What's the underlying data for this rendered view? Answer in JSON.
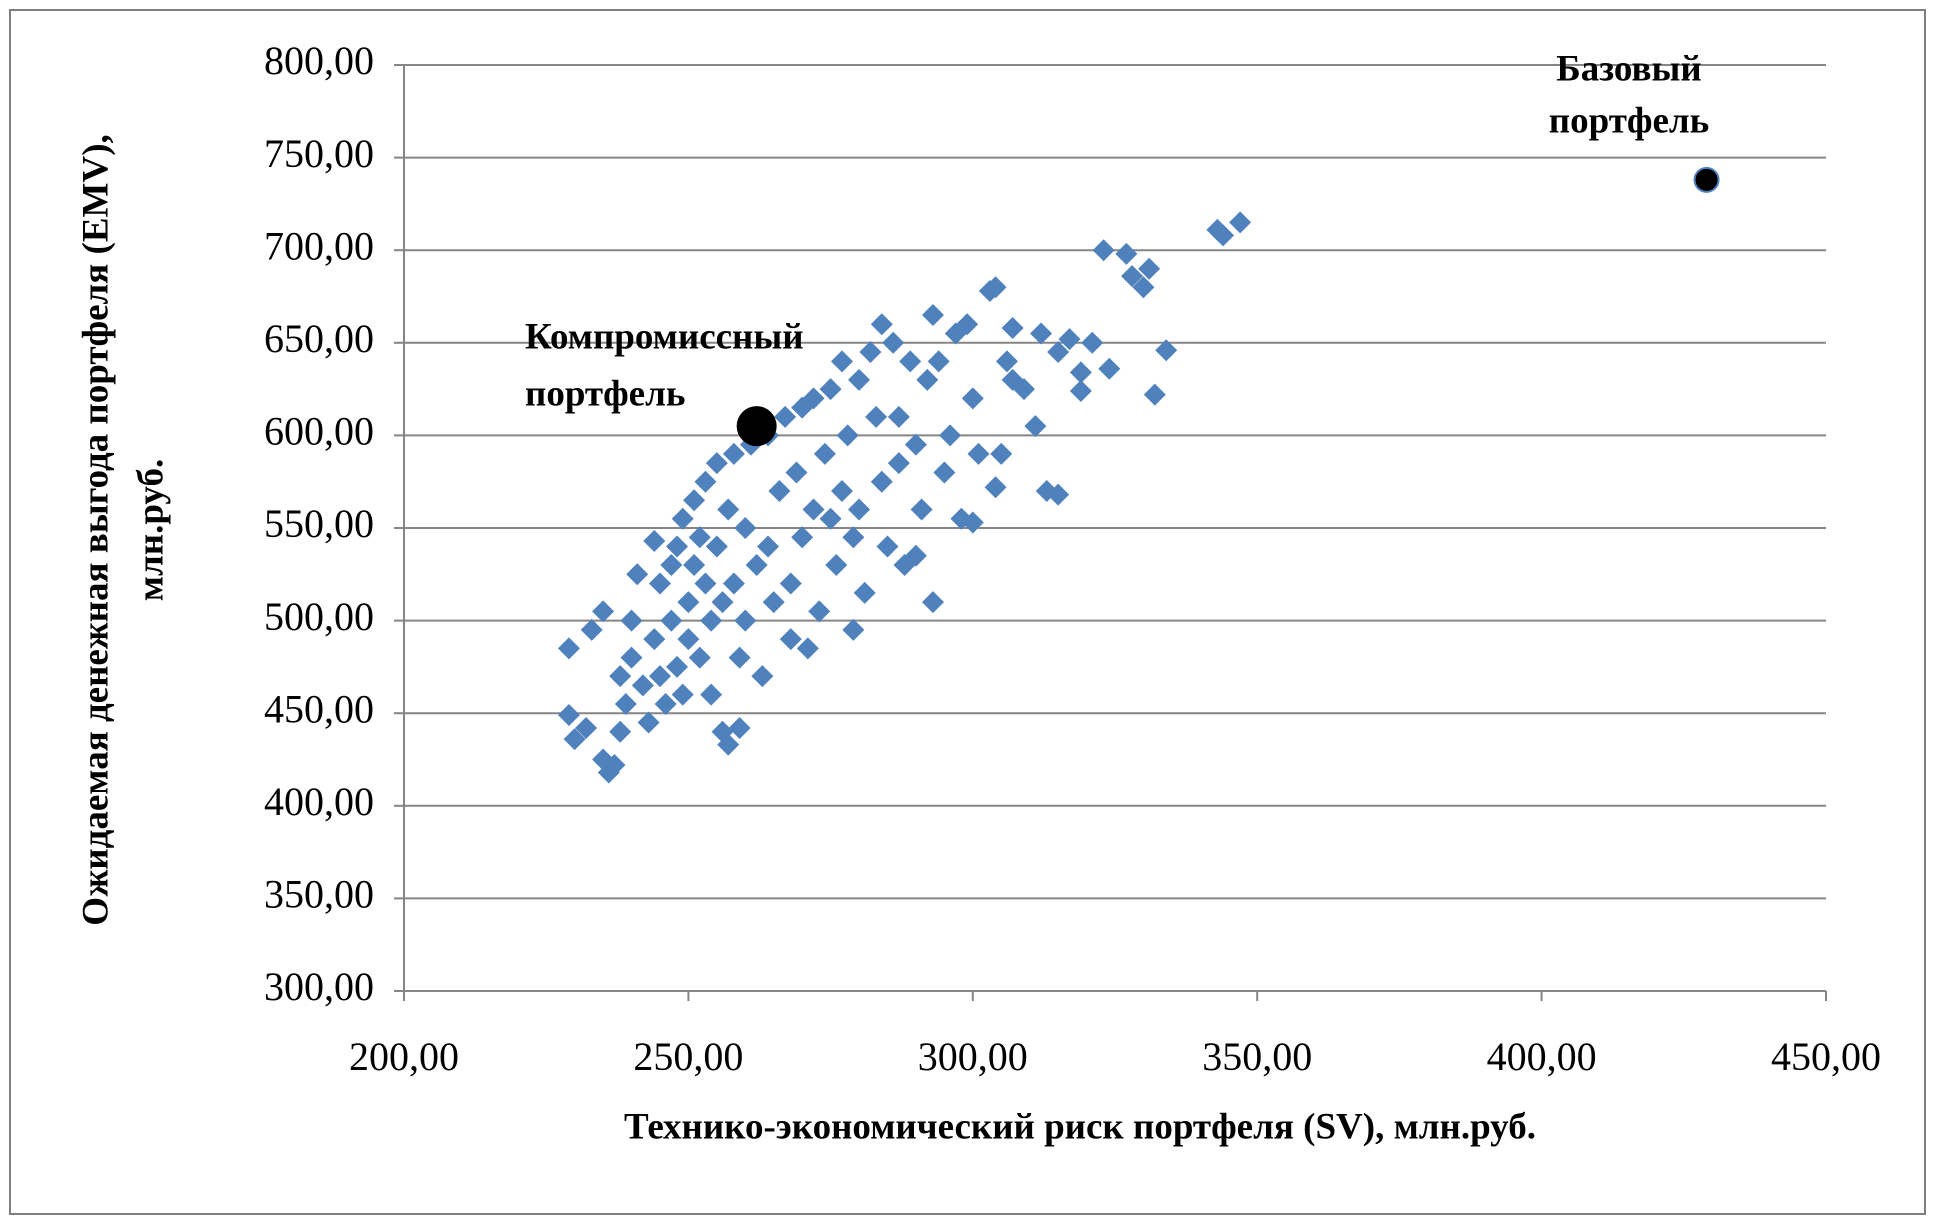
{
  "chart_data": {
    "type": "scatter",
    "x_label": "Технико-экономический риск портфеля (SV), млн.руб.",
    "y_label": [
      "Ожидаемая денежная выгода портфеля (EMV),",
      "млн.руб."
    ],
    "xlim": [
      200,
      450
    ],
    "ylim": [
      300,
      800
    ],
    "xticks": [
      {
        "value": 200,
        "label": "200,00"
      },
      {
        "value": 250,
        "label": "250,00"
      },
      {
        "value": 300,
        "label": "300,00"
      },
      {
        "value": 350,
        "label": "350,00"
      },
      {
        "value": 400,
        "label": "400,00"
      },
      {
        "value": 450,
        "label": "450,00"
      }
    ],
    "yticks": [
      {
        "value": 300,
        "label": "300,00"
      },
      {
        "value": 350,
        "label": "350,00"
      },
      {
        "value": 400,
        "label": "400,00"
      },
      {
        "value": 450,
        "label": "450,00"
      },
      {
        "value": 500,
        "label": "500,00"
      },
      {
        "value": 550,
        "label": "550,00"
      },
      {
        "value": 600,
        "label": "600,00"
      },
      {
        "value": 650,
        "label": "650,00"
      },
      {
        "value": 700,
        "label": "700,00"
      },
      {
        "value": 750,
        "label": "750,00"
      },
      {
        "value": 800,
        "label": "800,00"
      }
    ],
    "grid": true,
    "series": [
      {
        "color": "#4f81bd",
        "x": [
          229,
          229,
          230,
          232,
          233,
          235,
          235,
          236,
          237,
          238,
          238,
          239,
          240,
          240,
          241,
          242,
          243,
          244,
          244,
          245,
          245,
          246,
          247,
          247,
          248,
          248,
          249,
          249,
          250,
          250,
          251,
          251,
          252,
          252,
          253,
          253,
          254,
          254,
          255,
          255,
          256,
          256,
          257,
          257,
          258,
          258,
          259,
          259,
          260,
          260,
          261,
          262,
          263,
          264,
          264,
          265,
          266,
          267,
          268,
          268,
          269,
          270,
          270,
          271,
          272,
          272,
          273,
          274,
          275,
          275,
          276,
          277,
          277,
          278,
          279,
          279,
          280,
          280,
          281,
          282,
          283,
          284,
          284,
          285,
          286,
          287,
          287,
          288,
          289,
          290,
          290,
          291,
          292,
          293,
          293,
          294,
          295,
          296,
          297,
          298,
          299,
          300,
          300,
          301,
          303,
          304,
          304,
          305,
          306,
          307,
          307,
          309,
          311,
          312,
          313,
          315,
          315,
          317,
          319,
          319,
          321,
          323,
          324,
          327,
          328,
          330,
          331,
          332,
          334,
          343,
          344,
          347
        ],
        "values": [
          485,
          449,
          436,
          442,
          495,
          505,
          425,
          418,
          422,
          440,
          470,
          455,
          480,
          500,
          525,
          465,
          445,
          543,
          490,
          470,
          520,
          455,
          530,
          500,
          540,
          475,
          555,
          460,
          510,
          490,
          565,
          530,
          545,
          480,
          520,
          575,
          500,
          460,
          540,
          585,
          440,
          510,
          433,
          560,
          590,
          520,
          442,
          480,
          550,
          500,
          595,
          530,
          470,
          540,
          600,
          510,
          570,
          610,
          520,
          490,
          580,
          615,
          545,
          485,
          560,
          620,
          505,
          590,
          625,
          555,
          530,
          640,
          570,
          600,
          495,
          545,
          630,
          560,
          515,
          645,
          610,
          660,
          575,
          540,
          650,
          610,
          585,
          530,
          640,
          595,
          535,
          560,
          630,
          510,
          665,
          640,
          580,
          600,
          655,
          555,
          660,
          620,
          553,
          590,
          678,
          680,
          572,
          590,
          640,
          630,
          658,
          625,
          605,
          655,
          570,
          568,
          645,
          652,
          624,
          634,
          650,
          700,
          636,
          698,
          686,
          680,
          690,
          622,
          646,
          711,
          708,
          715
        ]
      }
    ],
    "annotations": [
      {
        "text": [
          "Компромиссный",
          "портфель"
        ],
        "x": 262,
        "y": 605,
        "color": "#000000"
      },
      {
        "text": [
          "Базовый",
          "портфель"
        ],
        "x": 429,
        "y": 738,
        "color": "#000000"
      }
    ]
  }
}
